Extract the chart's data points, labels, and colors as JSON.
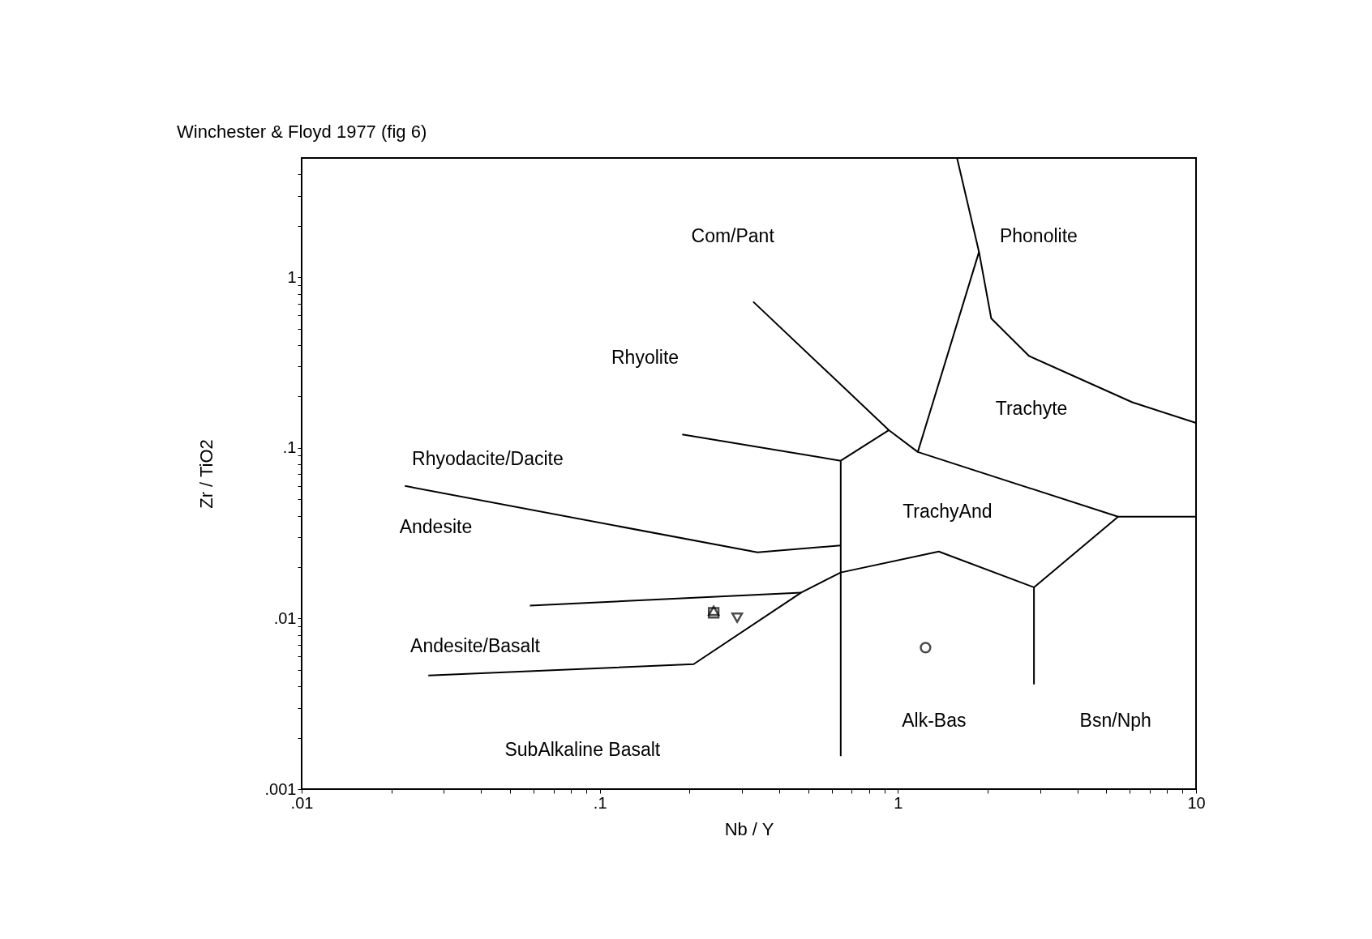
{
  "chart_data": {
    "type": "scatter",
    "title": "Winchester & Floyd 1977 (fig 6)",
    "xlabel": "Nb / Y",
    "ylabel": "Zr / TiO2",
    "log": "xy",
    "grid": false,
    "xlim": [
      0.01,
      10
    ],
    "ylim": [
      0.001,
      5
    ],
    "xticks": [
      {
        "value": 0.01,
        "label": ".01"
      },
      {
        "value": 0.02,
        "label": null
      },
      {
        "value": 0.03,
        "label": null
      },
      {
        "value": 0.04,
        "label": null
      },
      {
        "value": 0.05,
        "label": null
      },
      {
        "value": 0.06,
        "label": null
      },
      {
        "value": 0.07,
        "label": null
      },
      {
        "value": 0.08,
        "label": null
      },
      {
        "value": 0.09,
        "label": null
      },
      {
        "value": 0.1,
        "label": ".1"
      },
      {
        "value": 0.2,
        "label": null
      },
      {
        "value": 0.3,
        "label": null
      },
      {
        "value": 0.4,
        "label": null
      },
      {
        "value": 0.5,
        "label": null
      },
      {
        "value": 0.6,
        "label": null
      },
      {
        "value": 0.7,
        "label": null
      },
      {
        "value": 0.8,
        "label": null
      },
      {
        "value": 0.9,
        "label": null
      },
      1,
      {
        "value": 2,
        "label": null
      },
      {
        "value": 3,
        "label": null
      },
      {
        "value": 4,
        "label": null
      },
      {
        "value": 5,
        "label": null
      },
      {
        "value": 6,
        "label": null
      },
      {
        "value": 7,
        "label": null
      },
      {
        "value": 8,
        "label": null
      },
      {
        "value": 9,
        "label": null
      },
      10
    ],
    "yticks": [
      {
        "value": 0.001,
        "label": ".001"
      },
      {
        "value": 0.002,
        "label": null
      },
      {
        "value": 0.003,
        "label": null
      },
      {
        "value": 0.004,
        "label": null
      },
      {
        "value": 0.005,
        "label": null
      },
      {
        "value": 0.006,
        "label": null
      },
      {
        "value": 0.007,
        "label": null
      },
      {
        "value": 0.008,
        "label": null
      },
      {
        "value": 0.009,
        "label": null
      },
      {
        "value": 0.01,
        "label": ".01"
      },
      {
        "value": 0.02,
        "label": null
      },
      {
        "value": 0.03,
        "label": null
      },
      {
        "value": 0.04,
        "label": null
      },
      {
        "value": 0.05,
        "label": null
      },
      {
        "value": 0.06,
        "label": null
      },
      {
        "value": 0.07,
        "label": null
      },
      {
        "value": 0.08,
        "label": null
      },
      {
        "value": 0.09,
        "label": null
      },
      {
        "value": 0.1,
        "label": ".1"
      },
      {
        "value": 0.2,
        "label": null
      },
      {
        "value": 0.3,
        "label": null
      },
      {
        "value": 0.4,
        "label": null
      },
      {
        "value": 0.5,
        "label": null
      },
      {
        "value": 0.6,
        "label": null
      },
      {
        "value": 0.7,
        "label": null
      },
      {
        "value": 0.8,
        "label": null
      },
      {
        "value": 0.9,
        "label": null
      },
      1,
      {
        "value": 2,
        "label": null
      },
      {
        "value": 3,
        "label": null
      },
      {
        "value": 4,
        "label": null
      }
    ],
    "series": [
      {
        "type": "line",
        "color": "#000000",
        "marker": "none",
        "x": [
          1.58,
          1.871,
          2.056,
          2.75,
          6.11,
          10
        ],
        "values": [
          4.97,
          1.408,
          0.574,
          0.346,
          0.185,
          0.14
        ]
      },
      {
        "type": "line",
        "color": "#000000",
        "marker": "none",
        "x": [
          1.871,
          1.166,
          0.933,
          0.327
        ],
        "values": [
          1.408,
          0.0946,
          0.127,
          0.719
        ]
      },
      {
        "type": "line",
        "color": "#000000",
        "marker": "none",
        "x": [
          0.933,
          0.643,
          0.643
        ],
        "values": [
          0.127,
          0.0841,
          0.00156
        ]
      },
      {
        "type": "line",
        "color": "#000000",
        "marker": "none",
        "x": [
          1.166,
          5.48,
          10
        ],
        "values": [
          0.0946,
          0.0395,
          0.0395
        ]
      },
      {
        "type": "line",
        "color": "#000000",
        "marker": "none",
        "x": [
          5.48,
          2.86,
          2.86
        ],
        "values": [
          0.0395,
          0.01523,
          0.00411
        ]
      },
      {
        "type": "line",
        "color": "#000000",
        "marker": "none",
        "x": [
          2.86,
          1.371,
          0.643,
          0.474,
          0.2065,
          0.0266
        ],
        "values": [
          0.01523,
          0.0247,
          0.0186,
          0.01419,
          0.0054,
          0.00463
        ]
      },
      {
        "type": "line",
        "color": "#000000",
        "marker": "none",
        "x": [
          0.0583,
          0.474
        ],
        "values": [
          0.01189,
          0.01419
        ]
      },
      {
        "type": "line",
        "color": "#000000",
        "marker": "none",
        "x": [
          0.189,
          0.643
        ],
        "values": [
          0.1198,
          0.0841
        ]
      },
      {
        "type": "line",
        "color": "#000000",
        "marker": "none",
        "x": [
          0.0222,
          0.338,
          0.643
        ],
        "values": [
          0.0598,
          0.0244,
          0.0268
        ]
      },
      {
        "color": "#000000",
        "marker": "square",
        "x": [
          0.241
        ],
        "values": [
          0.0108
        ]
      },
      {
        "color": "#000000",
        "marker": "triangle",
        "x": [
          0.241
        ],
        "values": [
          0.0111
        ]
      },
      {
        "color": "#000000",
        "marker": "triangle-down",
        "x": [
          0.289
        ],
        "values": [
          0.0101
        ]
      },
      {
        "color": "#000000",
        "marker": "circle",
        "x": [
          1.238
        ],
        "values": [
          0.00675
        ]
      }
    ],
    "annotations": [
      "Com/Pant",
      "Phonolite",
      "Rhyolite",
      "Trachyte",
      "Rhyodacite/Dacite",
      "Andesite",
      "TrachyAnd",
      "Andesite/Basalt",
      "Alk-Bas",
      "Bsn/Nph",
      "SubAlkaline Basalt"
    ]
  }
}
